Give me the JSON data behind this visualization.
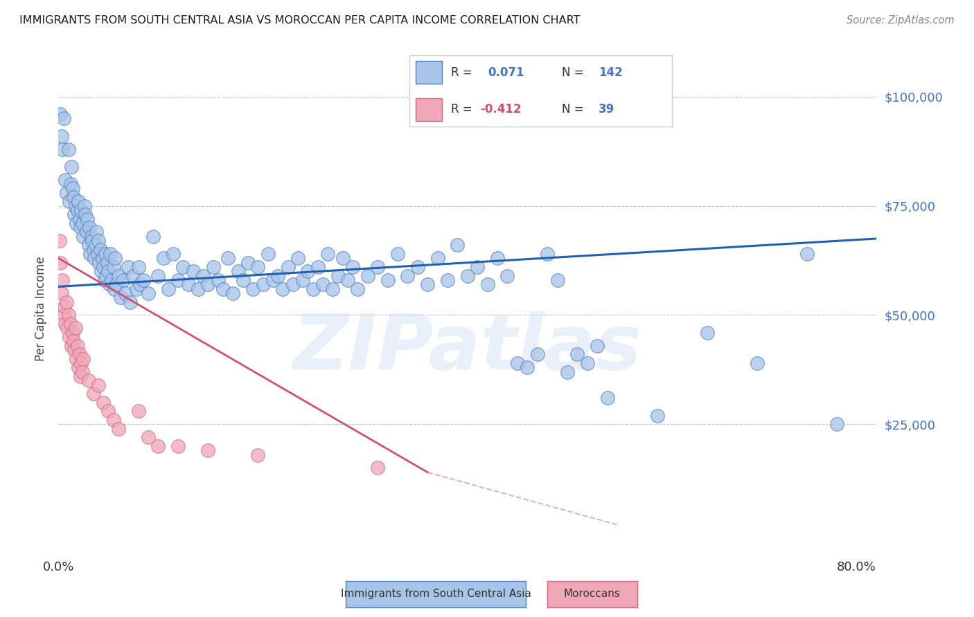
{
  "title": "IMMIGRANTS FROM SOUTH CENTRAL ASIA VS MOROCCAN PER CAPITA INCOME CORRELATION CHART",
  "source": "Source: ZipAtlas.com",
  "ylabel": "Per Capita Income",
  "xlim": [
    0.0,
    0.82
  ],
  "ylim": [
    -5000,
    108000
  ],
  "ytick_vals": [
    25000,
    50000,
    75000,
    100000
  ],
  "ytick_labels": [
    "$25,000",
    "$50,000",
    "$75,000",
    "$100,000"
  ],
  "xtick_vals": [
    0.0,
    0.8
  ],
  "xtick_labels": [
    "0.0%",
    "80.0%"
  ],
  "grid_vals": [
    25000,
    50000,
    75000,
    100000
  ],
  "blue_color": "#a8c4e8",
  "blue_edge": "#5080c0",
  "pink_color": "#f0a8b8",
  "pink_edge": "#d06888",
  "blue_line_color": "#2060b0",
  "pink_line_color": "#d05070",
  "watermark": "ZIPatlas",
  "legend1": "Immigrants from South Central Asia",
  "legend2": "Moroccans",
  "blue_line": [
    [
      0.0,
      56500
    ],
    [
      0.82,
      67500
    ]
  ],
  "pink_line_solid": [
    [
      0.0,
      63000
    ],
    [
      0.37,
      14000
    ]
  ],
  "pink_line_dash": [
    [
      0.37,
      14000
    ],
    [
      0.56,
      2000
    ]
  ],
  "blue_pts": [
    [
      0.002,
      96000
    ],
    [
      0.003,
      91000
    ],
    [
      0.004,
      88000
    ],
    [
      0.005,
      95000
    ],
    [
      0.007,
      81000
    ],
    [
      0.008,
      78000
    ],
    [
      0.01,
      88000
    ],
    [
      0.011,
      76000
    ],
    [
      0.012,
      80000
    ],
    [
      0.013,
      84000
    ],
    [
      0.014,
      79000
    ],
    [
      0.015,
      77000
    ],
    [
      0.016,
      73000
    ],
    [
      0.017,
      75000
    ],
    [
      0.018,
      71000
    ],
    [
      0.019,
      74000
    ],
    [
      0.02,
      76000
    ],
    [
      0.021,
      72000
    ],
    [
      0.022,
      70000
    ],
    [
      0.023,
      74000
    ],
    [
      0.024,
      71000
    ],
    [
      0.025,
      68000
    ],
    [
      0.026,
      75000
    ],
    [
      0.027,
      73000
    ],
    [
      0.028,
      69000
    ],
    [
      0.029,
      72000
    ],
    [
      0.03,
      66000
    ],
    [
      0.031,
      70000
    ],
    [
      0.032,
      64000
    ],
    [
      0.033,
      68000
    ],
    [
      0.034,
      67000
    ],
    [
      0.035,
      65000
    ],
    [
      0.036,
      63000
    ],
    [
      0.037,
      66000
    ],
    [
      0.038,
      69000
    ],
    [
      0.039,
      64000
    ],
    [
      0.04,
      67000
    ],
    [
      0.041,
      62000
    ],
    [
      0.042,
      65000
    ],
    [
      0.043,
      60000
    ],
    [
      0.044,
      63000
    ],
    [
      0.045,
      61000
    ],
    [
      0.046,
      58000
    ],
    [
      0.047,
      64000
    ],
    [
      0.048,
      59000
    ],
    [
      0.049,
      62000
    ],
    [
      0.05,
      60000
    ],
    [
      0.051,
      57000
    ],
    [
      0.052,
      64000
    ],
    [
      0.053,
      58000
    ],
    [
      0.055,
      61000
    ],
    [
      0.056,
      56000
    ],
    [
      0.057,
      63000
    ],
    [
      0.058,
      57000
    ],
    [
      0.06,
      59000
    ],
    [
      0.062,
      54000
    ],
    [
      0.065,
      58000
    ],
    [
      0.067,
      55000
    ],
    [
      0.07,
      61000
    ],
    [
      0.072,
      53000
    ],
    [
      0.075,
      59000
    ],
    [
      0.078,
      56000
    ],
    [
      0.08,
      61000
    ],
    [
      0.082,
      57000
    ],
    [
      0.085,
      58000
    ],
    [
      0.09,
      55000
    ],
    [
      0.095,
      68000
    ],
    [
      0.1,
      59000
    ],
    [
      0.105,
      63000
    ],
    [
      0.11,
      56000
    ],
    [
      0.115,
      64000
    ],
    [
      0.12,
      58000
    ],
    [
      0.125,
      61000
    ],
    [
      0.13,
      57000
    ],
    [
      0.135,
      60000
    ],
    [
      0.14,
      56000
    ],
    [
      0.145,
      59000
    ],
    [
      0.15,
      57000
    ],
    [
      0.155,
      61000
    ],
    [
      0.16,
      58000
    ],
    [
      0.165,
      56000
    ],
    [
      0.17,
      63000
    ],
    [
      0.175,
      55000
    ],
    [
      0.18,
      60000
    ],
    [
      0.185,
      58000
    ],
    [
      0.19,
      62000
    ],
    [
      0.195,
      56000
    ],
    [
      0.2,
      61000
    ],
    [
      0.205,
      57000
    ],
    [
      0.21,
      64000
    ],
    [
      0.215,
      58000
    ],
    [
      0.22,
      59000
    ],
    [
      0.225,
      56000
    ],
    [
      0.23,
      61000
    ],
    [
      0.235,
      57000
    ],
    [
      0.24,
      63000
    ],
    [
      0.245,
      58000
    ],
    [
      0.25,
      60000
    ],
    [
      0.255,
      56000
    ],
    [
      0.26,
      61000
    ],
    [
      0.265,
      57000
    ],
    [
      0.27,
      64000
    ],
    [
      0.275,
      56000
    ],
    [
      0.28,
      59000
    ],
    [
      0.285,
      63000
    ],
    [
      0.29,
      58000
    ],
    [
      0.295,
      61000
    ],
    [
      0.3,
      56000
    ],
    [
      0.31,
      59000
    ],
    [
      0.32,
      61000
    ],
    [
      0.33,
      58000
    ],
    [
      0.34,
      64000
    ],
    [
      0.35,
      59000
    ],
    [
      0.36,
      61000
    ],
    [
      0.37,
      57000
    ],
    [
      0.38,
      63000
    ],
    [
      0.39,
      58000
    ],
    [
      0.4,
      66000
    ],
    [
      0.41,
      59000
    ],
    [
      0.42,
      61000
    ],
    [
      0.43,
      57000
    ],
    [
      0.44,
      63000
    ],
    [
      0.45,
      59000
    ],
    [
      0.46,
      39000
    ],
    [
      0.47,
      38000
    ],
    [
      0.48,
      41000
    ],
    [
      0.49,
      64000
    ],
    [
      0.5,
      58000
    ],
    [
      0.51,
      37000
    ],
    [
      0.52,
      41000
    ],
    [
      0.53,
      39000
    ],
    [
      0.54,
      43000
    ],
    [
      0.55,
      31000
    ],
    [
      0.6,
      27000
    ],
    [
      0.65,
      46000
    ],
    [
      0.7,
      39000
    ],
    [
      0.75,
      64000
    ],
    [
      0.78,
      25000
    ]
  ],
  "pink_pts": [
    [
      0.001,
      67000
    ],
    [
      0.002,
      62000
    ],
    [
      0.003,
      55000
    ],
    [
      0.004,
      58000
    ],
    [
      0.005,
      50000
    ],
    [
      0.006,
      52000
    ],
    [
      0.007,
      48000
    ],
    [
      0.008,
      53000
    ],
    [
      0.009,
      47000
    ],
    [
      0.01,
      50000
    ],
    [
      0.011,
      45000
    ],
    [
      0.012,
      48000
    ],
    [
      0.013,
      43000
    ],
    [
      0.014,
      46000
    ],
    [
      0.015,
      44000
    ],
    [
      0.016,
      42000
    ],
    [
      0.017,
      47000
    ],
    [
      0.018,
      40000
    ],
    [
      0.019,
      43000
    ],
    [
      0.02,
      38000
    ],
    [
      0.021,
      41000
    ],
    [
      0.022,
      36000
    ],
    [
      0.023,
      39000
    ],
    [
      0.024,
      37000
    ],
    [
      0.025,
      40000
    ],
    [
      0.03,
      35000
    ],
    [
      0.035,
      32000
    ],
    [
      0.04,
      34000
    ],
    [
      0.045,
      30000
    ],
    [
      0.05,
      28000
    ],
    [
      0.055,
      26000
    ],
    [
      0.06,
      24000
    ],
    [
      0.08,
      28000
    ],
    [
      0.09,
      22000
    ],
    [
      0.1,
      20000
    ],
    [
      0.12,
      20000
    ],
    [
      0.15,
      19000
    ],
    [
      0.2,
      18000
    ],
    [
      0.32,
      15000
    ]
  ]
}
